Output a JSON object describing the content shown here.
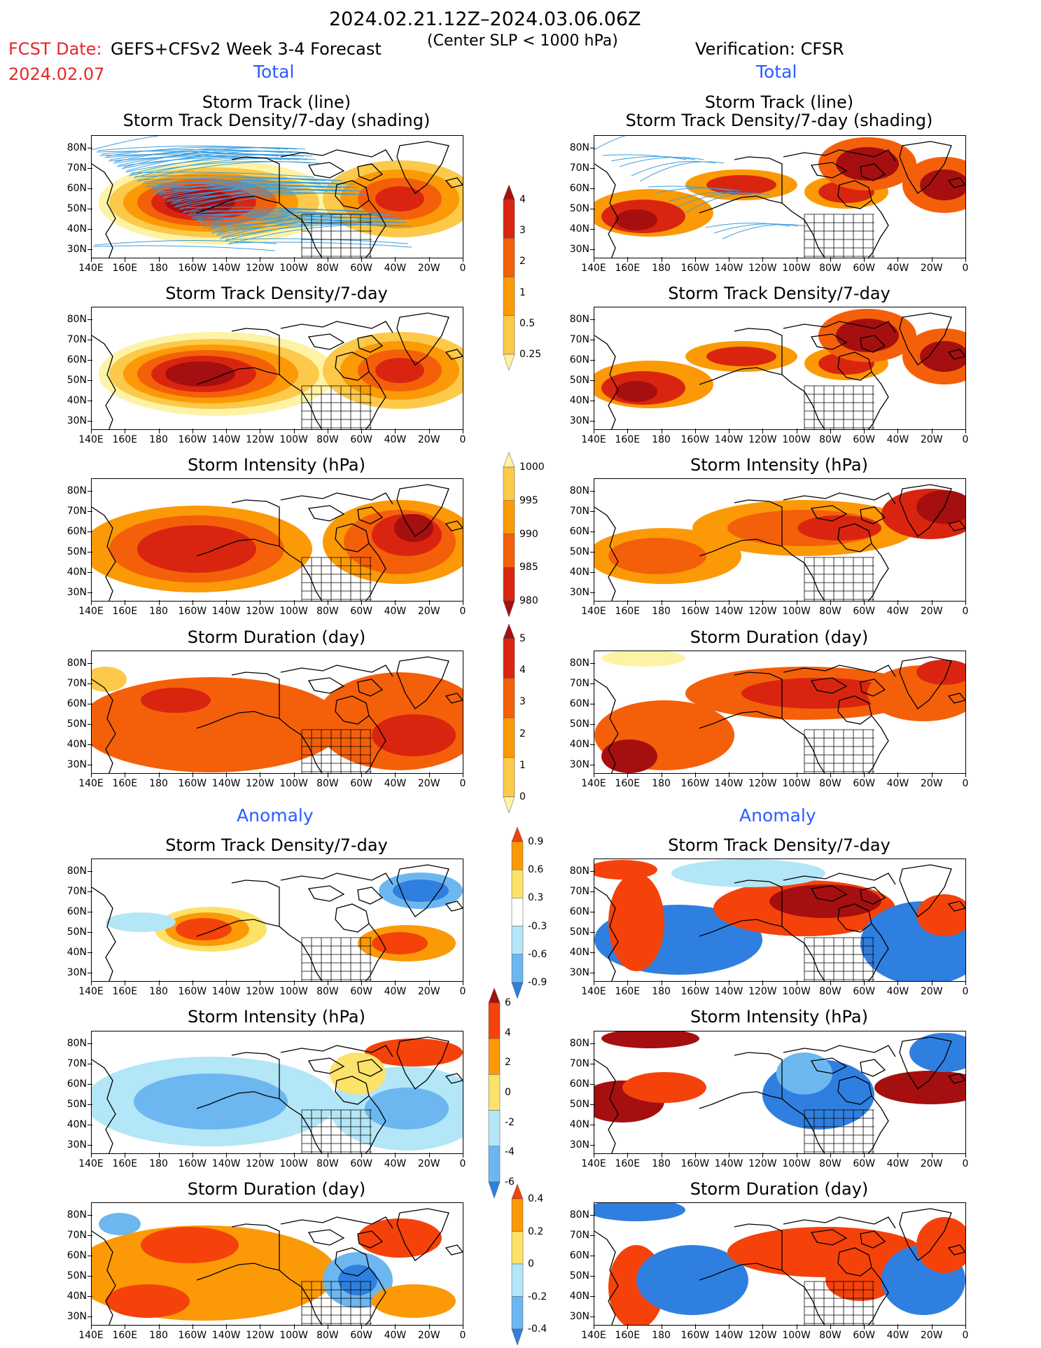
{
  "header": {
    "date_range": "2024.02.21.12Z–2024.03.06.06Z",
    "fcst_label": "FCST Date:",
    "fcst_date": "2024.02.07",
    "forecast_title": "GEFS+CFSv2 Week 3-4 Forecast",
    "criterion": "(Center SLP < 1000 hPa)",
    "verification": "Verification: CFSR",
    "total_left": "Total",
    "total_right": "Total",
    "anomaly_left": "Anomaly",
    "anomaly_right": "Anomaly"
  },
  "axes": {
    "lat_labels": [
      "80N",
      "70N",
      "60N",
      "50N",
      "40N",
      "30N"
    ],
    "lon_labels": [
      "140E",
      "160E",
      "180",
      "160W",
      "140W",
      "120W",
      "100W",
      "80W",
      "60W",
      "40W",
      "20W",
      "0"
    ]
  },
  "panels": {
    "p1_title1": "Storm Track (line)",
    "p1_title2": "Storm Track Density/7-day (shading)",
    "p2_title": "Storm Track Density/7-day",
    "p3_title": "Storm Intensity (hPa)",
    "p4_title": "Storm Duration (day)",
    "p5_title": "Storm Track Density/7-day",
    "p6_title": "Storm Intensity (hPa)",
    "p7_title": "Storm Duration (day)"
  },
  "colorbars": {
    "density": {
      "labels": [
        "4",
        "3",
        "2",
        "1",
        "0.5",
        "0.25"
      ],
      "colors": [
        "#a50f0f",
        "#d9250f",
        "#f4600a",
        "#fb9a06",
        "#fcc94a",
        "#fdf3a6"
      ]
    },
    "intensity": {
      "labels": [
        "1000",
        "995",
        "990",
        "985",
        "980"
      ],
      "colors": [
        "#fdf3a6",
        "#fcc94a",
        "#fb9a06",
        "#f4600a",
        "#d9250f",
        "#a50f0f"
      ]
    },
    "duration": {
      "labels": [
        "5",
        "4",
        "3",
        "2",
        "1",
        "0"
      ],
      "colors": [
        "#a50f0f",
        "#d9250f",
        "#f4600a",
        "#fb9a06",
        "#fcc94a",
        "#fdf3a6"
      ]
    },
    "anom_density": {
      "labels": [
        "0.9",
        "0.6",
        "0.3",
        "-0.3",
        "-0.6",
        "-0.9"
      ],
      "colors": [
        "#f4420a",
        "#fb9a06",
        "#fde26a",
        "#ffffff",
        "#b3e6f7",
        "#6db7f0",
        "#2f7fe0"
      ]
    },
    "anom_intensity": {
      "labels": [
        "6",
        "4",
        "2",
        "0",
        "-2",
        "-4",
        "-6"
      ],
      "colors": [
        "#a50f0f",
        "#f4420a",
        "#fb9a06",
        "#fde26a",
        "#b3e6f7",
        "#6db7f0",
        "#2f7fe0"
      ]
    },
    "anom_duration": {
      "labels": [
        "0.4",
        "0.2",
        "0",
        "-0.2",
        "-0.4"
      ],
      "colors": [
        "#f4420a",
        "#fb9a06",
        "#fde26a",
        "#b3e6f7",
        "#6db7f0",
        "#2f7fe0"
      ]
    }
  }
}
